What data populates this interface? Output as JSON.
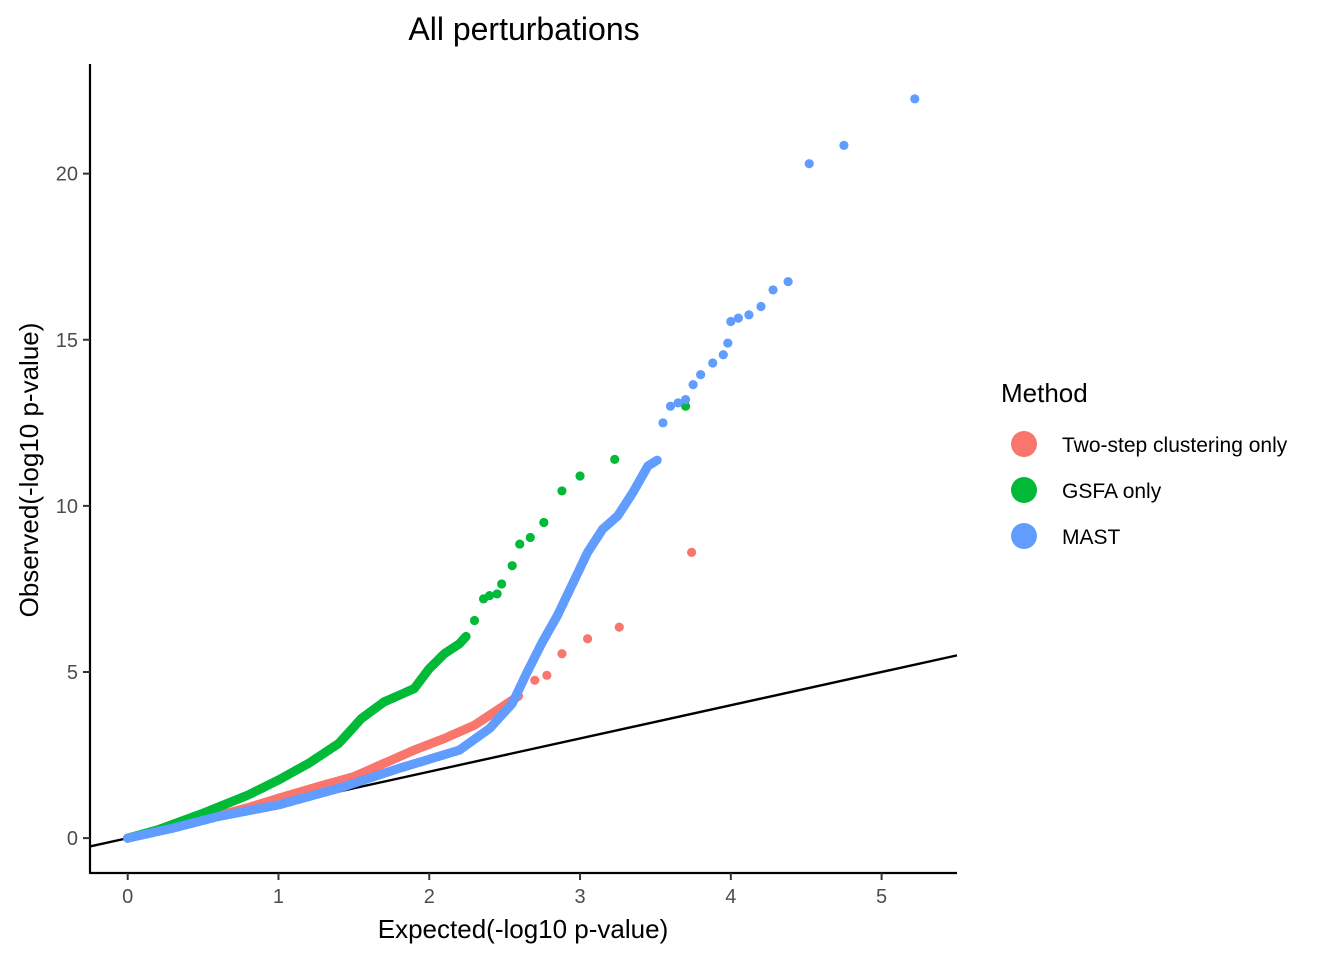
{
  "chart_data": {
    "type": "scatter",
    "title": "All perturbations",
    "xlabel": "Expected(-log10 p-value)",
    "ylabel": "Observed(-log10 p-value)",
    "xlim": [
      -0.25,
      5.5
    ],
    "ylim": [
      -1.05,
      23.3
    ],
    "x_ticks": [
      0,
      1,
      2,
      3,
      4,
      5
    ],
    "y_ticks": [
      0,
      5,
      10,
      15,
      20
    ],
    "grid": false,
    "legend": {
      "title": "Method",
      "placement": "right"
    },
    "reference_line": {
      "slope": 1,
      "intercept": 0,
      "color": "#000000"
    },
    "series": [
      {
        "name": "Two-step clustering only",
        "color": "#F8766D",
        "curve": [
          [
            0,
            0
          ],
          [
            0.2,
            0.22
          ],
          [
            0.5,
            0.56
          ],
          [
            0.8,
            0.92
          ],
          [
            1,
            1.2
          ],
          [
            1.3,
            1.6
          ],
          [
            1.5,
            1.85
          ],
          [
            1.7,
            2.25
          ],
          [
            1.9,
            2.65
          ],
          [
            2.1,
            3.0
          ],
          [
            2.3,
            3.4
          ],
          [
            2.5,
            4.0
          ],
          [
            2.6,
            4.3
          ]
        ],
        "points": [
          [
            2.7,
            4.75
          ],
          [
            2.78,
            4.9
          ],
          [
            2.88,
            5.55
          ],
          [
            3.05,
            6.0
          ],
          [
            3.26,
            6.35
          ],
          [
            3.74,
            8.6
          ]
        ]
      },
      {
        "name": "GSFA only",
        "color": "#00BA38",
        "curve": [
          [
            0,
            0
          ],
          [
            0.2,
            0.25
          ],
          [
            0.5,
            0.75
          ],
          [
            0.8,
            1.3
          ],
          [
            1,
            1.75
          ],
          [
            1.2,
            2.25
          ],
          [
            1.4,
            2.85
          ],
          [
            1.55,
            3.6
          ],
          [
            1.7,
            4.1
          ],
          [
            1.9,
            4.5
          ],
          [
            2.0,
            5.1
          ],
          [
            2.1,
            5.55
          ],
          [
            2.2,
            5.85
          ],
          [
            2.25,
            6.1
          ]
        ],
        "points": [
          [
            2.3,
            6.55
          ],
          [
            2.36,
            7.2
          ],
          [
            2.4,
            7.3
          ],
          [
            2.45,
            7.35
          ],
          [
            2.48,
            7.65
          ],
          [
            2.55,
            8.2
          ],
          [
            2.6,
            8.85
          ],
          [
            2.67,
            9.05
          ],
          [
            2.76,
            9.5
          ],
          [
            2.88,
            10.45
          ],
          [
            3.0,
            10.9
          ],
          [
            3.23,
            11.4
          ],
          [
            3.7,
            13.0
          ]
        ]
      },
      {
        "name": "MAST",
        "color": "#619CFF",
        "curve": [
          [
            0,
            0
          ],
          [
            0.3,
            0.3
          ],
          [
            0.6,
            0.65
          ],
          [
            1,
            1.0
          ],
          [
            1.4,
            1.5
          ],
          [
            1.8,
            2.1
          ],
          [
            2.2,
            2.65
          ],
          [
            2.4,
            3.3
          ],
          [
            2.55,
            4.05
          ],
          [
            2.65,
            5.0
          ],
          [
            2.75,
            5.9
          ],
          [
            2.85,
            6.7
          ],
          [
            2.95,
            7.65
          ],
          [
            3.05,
            8.6
          ],
          [
            3.15,
            9.3
          ],
          [
            3.25,
            9.7
          ],
          [
            3.35,
            10.4
          ],
          [
            3.45,
            11.2
          ],
          [
            3.52,
            11.4
          ]
        ],
        "points": [
          [
            3.55,
            12.5
          ],
          [
            3.6,
            13.0
          ],
          [
            3.65,
            13.1
          ],
          [
            3.7,
            13.2
          ],
          [
            3.75,
            13.65
          ],
          [
            3.8,
            13.95
          ],
          [
            3.88,
            14.3
          ],
          [
            3.95,
            14.55
          ],
          [
            3.98,
            14.9
          ],
          [
            4.0,
            15.55
          ],
          [
            4.05,
            15.65
          ],
          [
            4.12,
            15.75
          ],
          [
            4.2,
            16.0
          ],
          [
            4.28,
            16.5
          ],
          [
            4.38,
            16.75
          ],
          [
            4.52,
            20.3
          ],
          [
            4.75,
            20.85
          ],
          [
            5.22,
            22.25
          ]
        ]
      }
    ]
  }
}
